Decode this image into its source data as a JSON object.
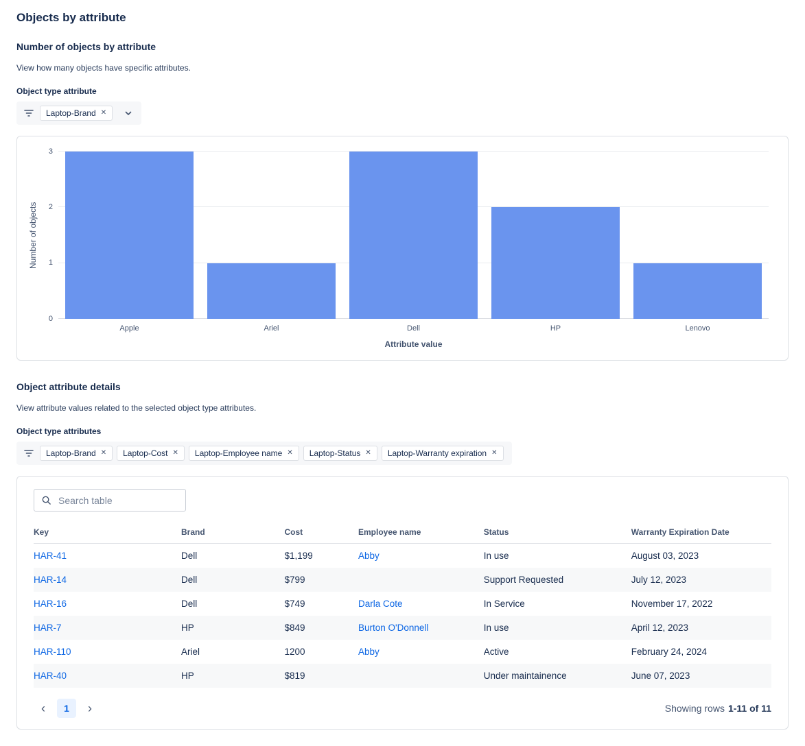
{
  "page": {
    "title": "Objects by attribute"
  },
  "icons": {
    "close": "✕",
    "chevron_left": "‹",
    "chevron_right": "›"
  },
  "colors": {
    "bar_blue": "#6A94EE",
    "link_blue": "#0C66E4",
    "stripe": "#F7F8F9",
    "border": "#DCDFE4"
  },
  "chart_section": {
    "heading": "Number of objects by attribute",
    "description": "View how many objects have specific attributes.",
    "filter_label": "Object type attribute",
    "filter_tags": [
      {
        "label": "Laptop-Brand"
      }
    ]
  },
  "chart_data": {
    "type": "bar",
    "categories": [
      "Apple",
      "Ariel",
      "Dell",
      "HP",
      "Lenovo"
    ],
    "values": [
      3,
      1,
      3,
      2,
      1
    ],
    "title": "",
    "xlabel": "Attribute value",
    "ylabel": "Number of objects",
    "ylim": [
      0,
      3
    ],
    "yticks": [
      0,
      1,
      2,
      3
    ],
    "bar_color": "#6A94EE",
    "grid": true,
    "legend": false
  },
  "details_section": {
    "heading": "Object attribute details",
    "description": "View attribute values related to the selected object type attributes.",
    "filter_label": "Object type attributes",
    "filter_tags": [
      {
        "label": "Laptop-Brand"
      },
      {
        "label": "Laptop-Cost"
      },
      {
        "label": "Laptop-Employee name"
      },
      {
        "label": "Laptop-Status"
      },
      {
        "label": "Laptop-Warranty expiration"
      }
    ]
  },
  "table": {
    "search_placeholder": "Search table",
    "columns": [
      "Key",
      "Brand",
      "Cost",
      "Employee name",
      "Status",
      "Warranty Expiration Date"
    ],
    "rows": [
      {
        "key": "HAR-41",
        "brand": "Dell",
        "cost": "$1,199",
        "employee": "Abby",
        "status": "In use",
        "warranty": "August 03, 2023"
      },
      {
        "key": "HAR-14",
        "brand": "Dell",
        "cost": "$799",
        "employee": "",
        "status": "Support Requested",
        "warranty": "July 12, 2023"
      },
      {
        "key": "HAR-16",
        "brand": "Dell",
        "cost": "$749",
        "employee": "Darla Cote",
        "status": "In Service",
        "warranty": "November 17, 2022"
      },
      {
        "key": "HAR-7",
        "brand": "HP",
        "cost": "$849",
        "employee": "Burton O'Donnell",
        "status": "In use",
        "warranty": "April 12, 2023"
      },
      {
        "key": "HAR-110",
        "brand": "Ariel",
        "cost": "1200",
        "employee": "Abby",
        "status": "Active",
        "warranty": "February 24, 2024"
      },
      {
        "key": "HAR-40",
        "brand": "HP",
        "cost": "$819",
        "employee": "",
        "status": "Under maintainence",
        "warranty": "June 07, 2023"
      }
    ],
    "pagination": {
      "current_page": "1",
      "summary_prefix": "Showing rows",
      "summary_range": "1-11 of 11"
    }
  }
}
